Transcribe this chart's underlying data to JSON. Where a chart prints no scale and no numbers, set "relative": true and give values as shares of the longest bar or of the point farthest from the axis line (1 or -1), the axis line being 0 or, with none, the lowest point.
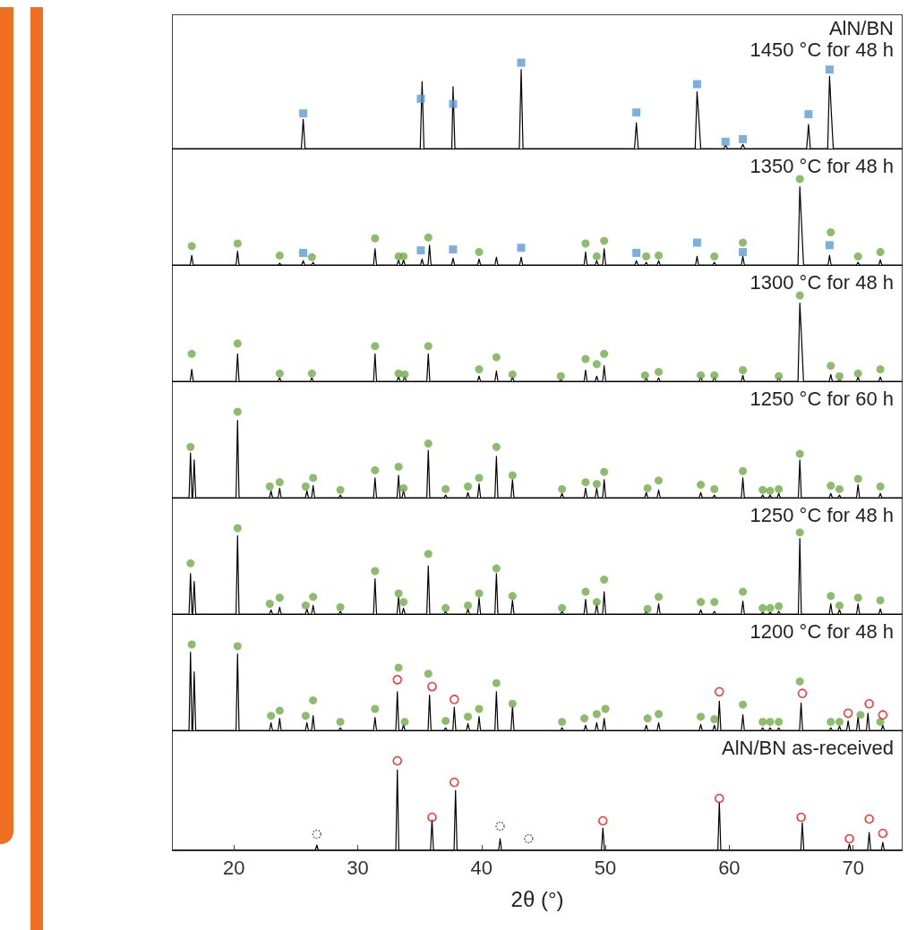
{
  "chart_data": [
    {
      "type": "line",
      "relative": true,
      "xlim": [
        15,
        74
      ],
      "xticks": [
        20,
        30,
        40,
        50,
        60,
        70
      ],
      "tick_labels": false,
      "annotations": [
        "AlN/BN",
        "1450 °C for 48 h"
      ],
      "series": [
        {
          "type": "line",
          "color": "#000000",
          "marker": "none",
          "x": [
            15,
            25.45,
            25.6,
            25.75,
            35.05,
            35.2,
            35.35,
            37.6,
            37.7,
            37.85,
            43.05,
            43.2,
            43.35,
            52.35,
            52.5,
            52.65,
            57.25,
            57.4,
            57.55,
            57.7,
            59.55,
            59.7,
            59.85,
            60.95,
            61.1,
            61.25,
            66.25,
            66.4,
            66.55,
            67.95,
            68.1,
            68.25,
            68.4,
            74
          ],
          "values": [
            0,
            0,
            0.34,
            0,
            0,
            0.78,
            0,
            0,
            0.72,
            0,
            0,
            0.92,
            0,
            0,
            0.3,
            0,
            0,
            0.66,
            0.35,
            0,
            0,
            0.04,
            0,
            0,
            0.05,
            0,
            0,
            0.28,
            0,
            0,
            0.84,
            0.4,
            0,
            0
          ]
        },
        {
          "type": "scatter",
          "color": "#5b9bd5",
          "marker": "square",
          "x": [
            25.6,
            35.1,
            37.7,
            43.2,
            52.5,
            57.4,
            59.7,
            61.1,
            66.4,
            68.1
          ],
          "values": [
            0.41,
            0.58,
            0.52,
            1.0,
            0.42,
            0.75,
            0.08,
            0.11,
            0.4,
            0.92
          ]
        }
      ]
    },
    {
      "type": "line",
      "relative": true,
      "xlim": [
        15,
        74
      ],
      "xticks": [
        20,
        30,
        40,
        50,
        60,
        70
      ],
      "tick_labels": false,
      "annotations": [
        "1350 °C for 48 h"
      ],
      "series": [
        {
          "type": "line",
          "color": "#000000",
          "marker": "none",
          "x": [
            15,
            16.48,
            16.6,
            16.72,
            20.18,
            20.3,
            20.42,
            23.58,
            23.7,
            23.82,
            25.48,
            25.6,
            25.72,
            26.28,
            26.4,
            26.52,
            31.28,
            31.4,
            31.52,
            33.18,
            33.3,
            33.42,
            33.58,
            33.7,
            33.82,
            35.08,
            35.2,
            35.32,
            35.68,
            35.8,
            35.92,
            37.58,
            37.7,
            37.82,
            39.68,
            39.8,
            39.92,
            41.08,
            41.2,
            41.32,
            43.08,
            43.2,
            43.32,
            48.28,
            48.4,
            48.52,
            49.18,
            49.3,
            49.42,
            49.78,
            49.9,
            50.02,
            52.38,
            52.5,
            52.62,
            53.18,
            53.3,
            53.42,
            54.18,
            54.3,
            54.42,
            57.28,
            57.4,
            57.52,
            58.68,
            58.8,
            58.92,
            60.98,
            61.1,
            61.22,
            65.55,
            65.7,
            65.85,
            66,
            67.98,
            68.1,
            68.22,
            70.28,
            70.4,
            70.52,
            72.08,
            72.2,
            72.32,
            74
          ],
          "values": [
            0,
            0,
            0.11,
            0,
            0,
            0.16,
            0,
            0,
            0.02,
            0,
            0,
            0.05,
            0,
            0,
            0.03,
            0,
            0,
            0.19,
            0,
            0,
            0.06,
            0,
            0,
            0.06,
            0,
            0,
            0.07,
            0,
            0,
            0.23,
            0,
            0,
            0.08,
            0,
            0,
            0.07,
            0,
            0,
            0.09,
            0,
            0,
            0.09,
            0,
            0,
            0.15,
            0,
            0,
            0.05,
            0,
            0,
            0.19,
            0,
            0,
            0.05,
            0,
            0,
            0.03,
            0,
            0,
            0.05,
            0,
            0,
            0.1,
            0,
            0,
            0.03,
            0,
            0,
            0.1,
            0,
            0,
            0.91,
            0.45,
            0,
            0,
            0.11,
            0,
            0,
            0.03,
            0,
            0,
            0.06,
            0,
            0
          ]
        },
        {
          "type": "scatter",
          "color": "#70ad47",
          "marker": "circle",
          "x": [
            16.6,
            20.3,
            23.7,
            26.3,
            31.4,
            33.3,
            33.7,
            35.7,
            39.8,
            48.4,
            49.3,
            49.9,
            53.3,
            54.3,
            58.8,
            61.1,
            65.7,
            68.2,
            70.4,
            72.2
          ],
          "values": [
            0.22,
            0.25,
            0.11,
            0.09,
            0.31,
            0.1,
            0.1,
            0.32,
            0.15,
            0.25,
            0.1,
            0.28,
            0.1,
            0.11,
            0.1,
            0.26,
            1.0,
            0.38,
            0.1,
            0.15
          ]
        },
        {
          "type": "scatter",
          "color": "#5b9bd5",
          "marker": "square",
          "x": [
            25.6,
            35.1,
            37.7,
            43.2,
            52.5,
            57.4,
            61.1,
            68.1
          ],
          "values": [
            0.14,
            0.17,
            0.18,
            0.2,
            0.14,
            0.26,
            0.15,
            0.23
          ]
        }
      ]
    },
    {
      "type": "line",
      "relative": true,
      "xlim": [
        15,
        74
      ],
      "xticks": [
        20,
        30,
        40,
        50,
        60,
        70
      ],
      "tick_labels": false,
      "annotations": [
        "1300 °C for 48 h"
      ],
      "series": [
        {
          "type": "line",
          "color": "#000000",
          "marker": "none",
          "x": [
            15,
            16.48,
            16.6,
            16.72,
            20.18,
            20.3,
            20.42,
            23.58,
            23.7,
            23.82,
            26.18,
            26.3,
            26.42,
            31.28,
            31.4,
            31.52,
            33.18,
            33.3,
            33.42,
            33.68,
            33.8,
            33.92,
            35.58,
            35.7,
            35.82,
            39.68,
            39.8,
            39.92,
            41.08,
            41.2,
            41.32,
            42.38,
            42.5,
            42.62,
            46.28,
            46.4,
            46.52,
            48.28,
            48.4,
            48.52,
            49.18,
            49.3,
            49.42,
            49.78,
            49.9,
            50.02,
            53.18,
            53.3,
            53.42,
            54.18,
            54.3,
            54.42,
            57.58,
            57.7,
            57.82,
            58.68,
            58.8,
            58.92,
            60.98,
            61.1,
            61.22,
            63.88,
            64.0,
            64.12,
            65.55,
            65.7,
            65.85,
            66.0,
            68.08,
            68.2,
            68.32,
            68.78,
            68.9,
            69.02,
            70.28,
            70.4,
            70.52,
            72.08,
            72.2,
            72.32,
            74
          ],
          "values": [
            0,
            0,
            0.14,
            0,
            0,
            0.32,
            0,
            0,
            0.04,
            0,
            0,
            0.04,
            0,
            0,
            0.32,
            0,
            0,
            0.06,
            0,
            0,
            0.06,
            0,
            0,
            0.32,
            0,
            0,
            0.06,
            0,
            0,
            0.12,
            0,
            0,
            0.05,
            0,
            0,
            0.02,
            0,
            0,
            0.13,
            0,
            0,
            0.06,
            0,
            0,
            0.18,
            0,
            0,
            0.04,
            0,
            0,
            0.04,
            0,
            0,
            0.05,
            0,
            0,
            0.05,
            0,
            0,
            0.07,
            0,
            0,
            0.04,
            0,
            0,
            0.91,
            0.47,
            0,
            0,
            0.08,
            0,
            0,
            0.02,
            0,
            0,
            0.05,
            0,
            0,
            0.05,
            0,
            0
          ]
        },
        {
          "type": "scatter",
          "color": "#70ad47",
          "marker": "circle",
          "x": [
            16.6,
            20.3,
            23.7,
            26.3,
            31.4,
            33.3,
            33.8,
            35.7,
            39.8,
            41.2,
            42.5,
            46.4,
            48.4,
            49.3,
            49.9,
            53.2,
            54.3,
            57.7,
            58.8,
            61.1,
            64.0,
            65.7,
            68.2,
            68.9,
            70.4,
            72.2
          ],
          "values": [
            0.32,
            0.44,
            0.09,
            0.09,
            0.41,
            0.09,
            0.08,
            0.41,
            0.14,
            0.28,
            0.08,
            0.06,
            0.26,
            0.2,
            0.32,
            0.07,
            0.11,
            0.07,
            0.07,
            0.13,
            0.06,
            1.0,
            0.18,
            0.06,
            0.09,
            0.14
          ]
        }
      ]
    },
    {
      "type": "line",
      "relative": true,
      "xlim": [
        15,
        74
      ],
      "xticks": [
        20,
        30,
        40,
        50,
        60,
        70
      ],
      "tick_labels": false,
      "annotations": [
        "1250 °C for 60 h"
      ],
      "series": [
        {
          "type": "line",
          "color": "#000000",
          "marker": "none",
          "x": [
            15,
            16.38,
            16.5,
            16.62,
            16.68,
            16.8,
            16.92,
            20.18,
            20.3,
            20.42,
            22.88,
            23.0,
            23.12,
            23.58,
            23.7,
            23.82,
            25.78,
            25.9,
            26.02,
            26.28,
            26.4,
            26.52,
            28.48,
            28.6,
            28.72,
            31.28,
            31.4,
            31.52,
            33.18,
            33.3,
            33.42,
            33.58,
            33.7,
            33.82,
            35.58,
            35.7,
            35.82,
            36.98,
            37.1,
            37.22,
            38.78,
            38.9,
            39.02,
            39.68,
            39.8,
            39.92,
            41.08,
            41.2,
            41.32,
            42.38,
            42.5,
            42.62,
            46.38,
            46.5,
            46.62,
            48.28,
            48.4,
            48.52,
            49.18,
            49.3,
            49.42,
            49.78,
            49.9,
            50.02,
            53.18,
            53.3,
            53.42,
            54.18,
            54.3,
            54.42,
            57.58,
            57.7,
            57.82,
            58.68,
            58.8,
            58.92,
            60.98,
            61.1,
            61.22,
            62.58,
            62.7,
            62.82,
            63.18,
            63.3,
            63.42,
            63.88,
            64.0,
            64.12,
            65.58,
            65.7,
            65.82,
            68.08,
            68.2,
            68.32,
            68.78,
            68.9,
            69.02,
            70.28,
            70.4,
            70.52,
            72.08,
            72.2,
            72.32,
            74
          ],
          "values": [
            0,
            0,
            0.52,
            0,
            0,
            0.44,
            0,
            0,
            0.9,
            0,
            0,
            0.08,
            0,
            0,
            0.11,
            0,
            0,
            0.08,
            0,
            0,
            0.14,
            0,
            0,
            0.03,
            0,
            0,
            0.23,
            0,
            0,
            0.26,
            0,
            0,
            0.09,
            0,
            0,
            0.55,
            0,
            0,
            0.03,
            0,
            0,
            0.06,
            0,
            0,
            0.16,
            0,
            0,
            0.48,
            0,
            0,
            0.21,
            0,
            0,
            0.05,
            0,
            0,
            0.11,
            0,
            0,
            0.11,
            0,
            0,
            0.21,
            0,
            0,
            0.06,
            0,
            0,
            0.09,
            0,
            0,
            0.06,
            0,
            0,
            0.03,
            0,
            0,
            0.23,
            0,
            0,
            0.03,
            0,
            0,
            0.03,
            0,
            0,
            0.05,
            0,
            0,
            0.44,
            0,
            0,
            0.05,
            0,
            0,
            0.03,
            0,
            0,
            0.15,
            0,
            0,
            0.05,
            0,
            0
          ]
        },
        {
          "type": "scatter",
          "color": "#70ad47",
          "marker": "circle",
          "x": [
            16.5,
            20.3,
            22.9,
            23.7,
            25.8,
            26.4,
            28.6,
            31.4,
            33.3,
            33.7,
            35.7,
            37.1,
            38.9,
            39.8,
            41.2,
            42.5,
            46.5,
            48.4,
            49.3,
            49.9,
            53.4,
            54.3,
            57.7,
            58.8,
            61.1,
            62.7,
            63.3,
            64.0,
            65.7,
            68.2,
            68.9,
            70.4,
            72.2
          ],
          "values": [
            0.59,
            1.0,
            0.13,
            0.18,
            0.13,
            0.23,
            0.09,
            0.32,
            0.36,
            0.11,
            0.63,
            0.1,
            0.13,
            0.23,
            0.59,
            0.26,
            0.1,
            0.18,
            0.16,
            0.3,
            0.11,
            0.2,
            0.15,
            0.1,
            0.31,
            0.09,
            0.08,
            0.1,
            0.51,
            0.14,
            0.1,
            0.22,
            0.13
          ]
        }
      ]
    },
    {
      "type": "line",
      "relative": true,
      "xlim": [
        15,
        74
      ],
      "xticks": [
        20,
        30,
        40,
        50,
        60,
        70
      ],
      "tick_labels": false,
      "annotations": [
        "1250 °C for 48 h"
      ],
      "series": [
        {
          "type": "line",
          "color": "#000000",
          "marker": "none",
          "x": [
            15,
            16.38,
            16.5,
            16.62,
            16.68,
            16.8,
            16.92,
            20.18,
            20.3,
            20.42,
            22.88,
            23.0,
            23.12,
            23.58,
            23.7,
            23.82,
            25.78,
            25.9,
            26.02,
            26.28,
            26.4,
            26.52,
            28.48,
            28.6,
            28.72,
            31.28,
            31.4,
            31.52,
            33.18,
            33.3,
            33.42,
            33.58,
            33.7,
            33.82,
            35.58,
            35.7,
            35.82,
            36.98,
            37.1,
            37.22,
            38.78,
            38.9,
            39.02,
            39.68,
            39.8,
            39.92,
            41.08,
            41.2,
            41.32,
            42.38,
            42.5,
            42.62,
            46.38,
            46.5,
            46.62,
            48.28,
            48.4,
            48.52,
            49.18,
            49.3,
            49.42,
            49.78,
            49.9,
            50.02,
            53.18,
            53.3,
            53.42,
            54.18,
            54.3,
            54.42,
            57.58,
            57.7,
            57.82,
            58.68,
            58.8,
            58.92,
            60.98,
            61.1,
            61.22,
            62.58,
            62.7,
            62.82,
            63.18,
            63.3,
            63.42,
            63.88,
            64.0,
            64.12,
            65.58,
            65.7,
            65.82,
            68.08,
            68.2,
            68.32,
            68.78,
            68.9,
            69.02,
            70.28,
            70.4,
            70.52,
            72.08,
            72.2,
            72.32,
            74
          ],
          "values": [
            0,
            0,
            0.47,
            0,
            0,
            0.38,
            0,
            0,
            0.91,
            0,
            0,
            0.05,
            0,
            0,
            0.08,
            0,
            0,
            0.06,
            0,
            0,
            0.1,
            0,
            0,
            0.03,
            0,
            0,
            0.41,
            0,
            0,
            0.2,
            0,
            0,
            0.07,
            0,
            0,
            0.56,
            0,
            0,
            0.03,
            0,
            0,
            0.06,
            0,
            0,
            0.19,
            0,
            0,
            0.47,
            0,
            0,
            0.16,
            0,
            0,
            0.03,
            0,
            0,
            0.17,
            0,
            0,
            0.12,
            0,
            0,
            0.26,
            0,
            0,
            0.03,
            0,
            0,
            0.12,
            0,
            0,
            0.05,
            0,
            0,
            0.03,
            0,
            0,
            0.15,
            0,
            0,
            0.02,
            0,
            0,
            0.02,
            0,
            0,
            0.03,
            0,
            0,
            0.88,
            0,
            0,
            0.12,
            0,
            0,
            0.05,
            0,
            0,
            0.12,
            0,
            0,
            0.06,
            0,
            0
          ]
        },
        {
          "type": "scatter",
          "color": "#70ad47",
          "marker": "circle",
          "x": [
            16.5,
            20.3,
            22.9,
            23.7,
            25.8,
            26.4,
            28.6,
            31.4,
            33.3,
            33.7,
            35.7,
            37.1,
            38.9,
            39.8,
            41.2,
            42.5,
            46.5,
            48.4,
            49.3,
            49.9,
            53.4,
            54.3,
            57.7,
            58.8,
            61.1,
            62.7,
            63.3,
            64.0,
            65.7,
            68.2,
            68.9,
            70.4,
            72.2
          ],
          "values": [
            0.59,
            1.0,
            0.12,
            0.19,
            0.1,
            0.2,
            0.08,
            0.5,
            0.24,
            0.14,
            0.7,
            0.07,
            0.1,
            0.24,
            0.53,
            0.21,
            0.07,
            0.26,
            0.14,
            0.4,
            0.06,
            0.2,
            0.14,
            0.14,
            0.26,
            0.07,
            0.07,
            0.09,
            0.95,
            0.21,
            0.1,
            0.19,
            0.16
          ]
        }
      ]
    },
    {
      "type": "line",
      "relative": true,
      "xlim": [
        15,
        74
      ],
      "xticks": [
        20,
        30,
        40,
        50,
        60,
        70
      ],
      "tick_labels": false,
      "annotations": [
        "1200 °C for 48 h"
      ],
      "series": [
        {
          "type": "line",
          "color": "#000000",
          "marker": "none",
          "x": [
            15,
            16.38,
            16.5,
            16.62,
            16.68,
            16.8,
            16.92,
            20.18,
            20.3,
            20.42,
            22.88,
            23.0,
            23.12,
            23.58,
            23.7,
            23.82,
            25.78,
            25.9,
            26.02,
            26.28,
            26.4,
            26.52,
            28.48,
            28.6,
            28.72,
            31.28,
            31.4,
            31.52,
            33.08,
            33.2,
            33.32,
            33.58,
            33.7,
            33.82,
            35.68,
            35.8,
            35.92,
            36.98,
            37.1,
            37.22,
            37.68,
            37.8,
            37.92,
            38.78,
            38.9,
            39.02,
            39.68,
            39.8,
            39.92,
            41.08,
            41.2,
            41.32,
            42.38,
            42.5,
            42.62,
            46.38,
            46.5,
            46.62,
            48.28,
            48.4,
            48.52,
            49.18,
            49.3,
            49.42,
            49.78,
            49.9,
            50.02,
            53.18,
            53.3,
            53.42,
            54.18,
            54.3,
            54.42,
            57.58,
            57.7,
            57.82,
            58.68,
            58.8,
            58.92,
            59.08,
            59.2,
            59.32,
            60.98,
            61.1,
            61.22,
            62.58,
            62.7,
            62.82,
            63.18,
            63.3,
            63.42,
            63.88,
            64.0,
            64.12,
            65.68,
            65.8,
            65.92,
            68.08,
            68.2,
            68.32,
            68.78,
            68.9,
            69.02,
            69.48,
            69.6,
            69.72,
            70.28,
            70.4,
            70.52,
            71.08,
            71.2,
            71.32,
            72.28,
            72.4,
            72.52,
            74
          ],
          "values": [
            0,
            0,
            0.91,
            0,
            0,
            0.68,
            0,
            0,
            0.89,
            0,
            0,
            0.09,
            0,
            0,
            0.14,
            0,
            0,
            0.09,
            0,
            0,
            0.17,
            0,
            0,
            0.03,
            0,
            0,
            0.15,
            0,
            0,
            0.45,
            0,
            0,
            0.07,
            0,
            0,
            0.41,
            0,
            0,
            0.03,
            0,
            0,
            0.27,
            0,
            0,
            0.08,
            0,
            0,
            0.16,
            0,
            0,
            0.45,
            0,
            0,
            0.28,
            0,
            0,
            0.03,
            0,
            0,
            0.06,
            0,
            0,
            0.09,
            0,
            0,
            0.14,
            0,
            0,
            0.06,
            0,
            0,
            0.09,
            0,
            0,
            0.07,
            0,
            0,
            0.06,
            0,
            0,
            0.34,
            0,
            0,
            0.18,
            0,
            0,
            0.03,
            0,
            0,
            0.03,
            0,
            0,
            0.03,
            0,
            0,
            0.32,
            0,
            0,
            0.03,
            0,
            0,
            0.05,
            0,
            0,
            0.11,
            0,
            0,
            0.16,
            0,
            0,
            0.2,
            0,
            0,
            0.06,
            0,
            0
          ]
        },
        {
          "type": "scatter",
          "color": "#70ad47",
          "marker": "circle",
          "x": [
            16.6,
            20.3,
            23.0,
            23.7,
            25.8,
            26.4,
            28.6,
            31.4,
            33.3,
            33.8,
            35.7,
            37.1,
            38.9,
            39.8,
            41.2,
            42.5,
            46.5,
            48.3,
            49.3,
            50.0,
            53.4,
            54.3,
            57.7,
            58.8,
            61.1,
            62.7,
            63.3,
            64.0,
            65.7,
            68.2,
            68.9,
            70.6,
            72.2
          ],
          "values": [
            1.0,
            0.98,
            0.17,
            0.23,
            0.17,
            0.35,
            0.1,
            0.25,
            0.73,
            0.1,
            0.66,
            0.11,
            0.16,
            0.25,
            0.55,
            0.31,
            0.1,
            0.14,
            0.19,
            0.25,
            0.14,
            0.19,
            0.16,
            0.13,
            0.3,
            0.1,
            0.1,
            0.1,
            0.57,
            0.1,
            0.1,
            0.18,
            0.1
          ]
        },
        {
          "type": "scatter",
          "color": "#ff0000",
          "marker": "circle",
          "line_style": "solid",
          "x": [
            33.2,
            36.0,
            37.8,
            59.2,
            65.9,
            69.6,
            71.3,
            72.4
          ],
          "values": [
            0.59,
            0.51,
            0.36,
            0.45,
            0.43,
            0.2,
            0.31,
            0.18
          ]
        }
      ]
    },
    {
      "type": "line",
      "relative": true,
      "xlim": [
        15,
        74
      ],
      "xticks": [
        20,
        30,
        40,
        50,
        60,
        70
      ],
      "tick_labels": "x",
      "xlabel": "2θ (°)",
      "annotations": [
        "AlN/BN as-received"
      ],
      "series": [
        {
          "type": "line",
          "color": "#000000",
          "marker": "none",
          "x": [
            15,
            26.58,
            26.7,
            26.82,
            33.08,
            33.2,
            33.32,
            35.88,
            36.0,
            36.12,
            37.78,
            37.9,
            38.02,
            41.38,
            41.5,
            41.62,
            49.68,
            49.8,
            49.92,
            59.08,
            59.2,
            59.32,
            65.78,
            65.9,
            66.02,
            69.58,
            69.7,
            69.82,
            71.18,
            71.3,
            71.42,
            72.28,
            72.4,
            72.52,
            74
          ],
          "values": [
            0,
            0,
            0.06,
            0,
            0,
            0.9,
            0,
            0,
            0.34,
            0,
            0,
            0.67,
            0,
            0,
            0.13,
            0,
            0,
            0.25,
            0,
            0,
            0.54,
            0,
            0,
            0.31,
            0,
            0,
            0.07,
            0,
            0,
            0.2,
            0,
            0,
            0.09,
            0,
            0
          ]
        },
        {
          "type": "scatter",
          "color": "#ff0000",
          "marker": "circle",
          "line_style": "solid",
          "x": [
            33.2,
            36.0,
            37.8,
            49.8,
            59.2,
            65.8,
            69.7,
            71.3,
            72.4
          ],
          "values": [
            1.0,
            0.37,
            0.76,
            0.33,
            0.58,
            0.37,
            0.13,
            0.35,
            0.19
          ]
        },
        {
          "type": "scatter",
          "color": "#1f3c88",
          "marker": "circle",
          "line_style": "dotted",
          "x": [
            26.7,
            41.5,
            43.8
          ],
          "values": [
            0.18,
            0.27,
            0.13
          ]
        }
      ]
    }
  ]
}
